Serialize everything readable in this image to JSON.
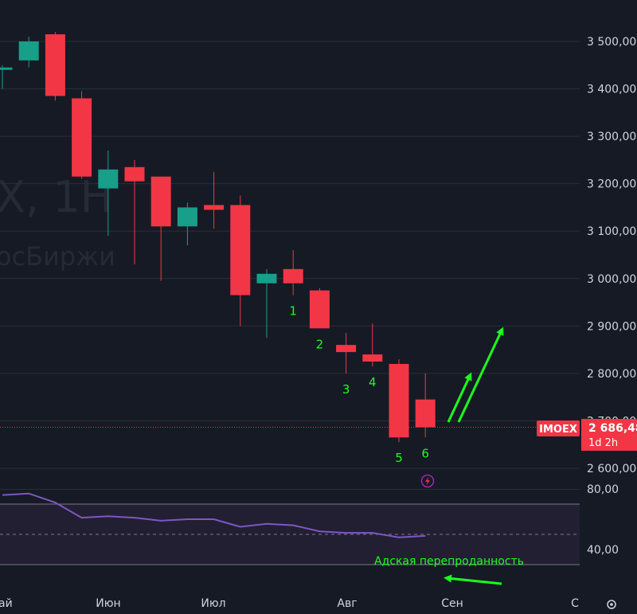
{
  "chart_data": [
    {
      "type": "candlestick",
      "watermark": {
        "symbol": "X, 1H",
        "source": "осБиржи"
      },
      "y_axis": {
        "ticks": [
          "3 500,00",
          "3 400,00",
          "3 300,00",
          "3 200,00",
          "3 100,00",
          "3 000,00",
          "2 900,00",
          "2 800,00",
          "2 700,00",
          "2 600,00"
        ],
        "ylim": [
          2560,
          3560
        ]
      },
      "x_axis": {
        "ticks": [
          "ай",
          "Июн",
          "Июл",
          "Авг",
          "Сен",
          "С"
        ]
      },
      "candles": [
        {
          "open": 3440,
          "high": 3450,
          "low": 3400,
          "close": 3445
        },
        {
          "open": 3460,
          "high": 3510,
          "low": 3445,
          "close": 3500
        },
        {
          "open": 3515,
          "high": 3520,
          "low": 3375,
          "close": 3385
        },
        {
          "open": 3380,
          "high": 3395,
          "low": 3210,
          "close": 3215
        },
        {
          "open": 3190,
          "high": 3270,
          "low": 3090,
          "close": 3230
        },
        {
          "open": 3235,
          "high": 3250,
          "low": 3030,
          "close": 3205
        },
        {
          "open": 3215,
          "high": 3215,
          "low": 2995,
          "close": 3110
        },
        {
          "open": 3110,
          "high": 3160,
          "low": 3070,
          "close": 3150
        },
        {
          "open": 3155,
          "high": 3225,
          "low": 3105,
          "close": 3145
        },
        {
          "open": 3155,
          "high": 3175,
          "low": 2900,
          "close": 2965
        },
        {
          "open": 2990,
          "high": 3020,
          "low": 2875,
          "close": 3010
        },
        {
          "open": 3020,
          "high": 3060,
          "low": 2965,
          "close": 2990
        },
        {
          "open": 2975,
          "high": 2980,
          "low": 2895,
          "close": 2895
        },
        {
          "open": 2860,
          "high": 2885,
          "low": 2800,
          "close": 2845
        },
        {
          "open": 2840,
          "high": 2905,
          "low": 2815,
          "close": 2825
        },
        {
          "open": 2820,
          "high": 2830,
          "low": 2655,
          "close": 2665
        },
        {
          "open": 2745,
          "high": 2800,
          "low": 2665,
          "close": 2686.48
        }
      ],
      "colors": {
        "up": "#179f8a",
        "down": "#f23645",
        "background": "#161a25",
        "grid": "#2a2e39",
        "arrow": "#1cff1c",
        "price_line": "#f23645"
      },
      "wave_labels": [
        {
          "label": "1",
          "candle": 11
        },
        {
          "label": "2",
          "candle": 12
        },
        {
          "label": "3",
          "candle": 13
        },
        {
          "label": "4",
          "candle": 14
        },
        {
          "label": "5",
          "candle": 15
        },
        {
          "label": "6",
          "candle": 16
        }
      ],
      "last_price": {
        "ticker": "IMOEX",
        "value": "2 686,48",
        "countdown": "1d 2h"
      },
      "icons": [
        "lightning-icon",
        "settings-icon"
      ]
    },
    {
      "type": "line",
      "indicator": "RSI",
      "values": [
        76,
        77,
        71,
        61,
        62,
        61,
        59,
        60,
        60,
        55,
        57,
        56,
        52,
        51,
        51,
        48,
        49
      ],
      "levels": [
        70,
        50,
        30
      ],
      "ylim": [
        25,
        85
      ],
      "y_axis": {
        "ticks": [
          "80,00",
          "40,00"
        ]
      },
      "colors": {
        "line": "#7e57c2",
        "band": "#221f33",
        "level_line": "#787b86"
      },
      "annotation": "Адская перепроданность"
    }
  ]
}
